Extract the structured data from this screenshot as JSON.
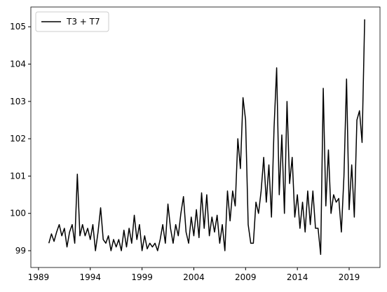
{
  "chart_data": {
    "type": "line",
    "x": [
      1990.0,
      1990.25,
      1990.5,
      1990.75,
      1991.0,
      1991.25,
      1991.5,
      1991.75,
      1992.0,
      1992.25,
      1992.5,
      1992.75,
      1993.0,
      1993.25,
      1993.5,
      1993.75,
      1994.0,
      1994.25,
      1994.5,
      1994.75,
      1995.0,
      1995.25,
      1995.5,
      1995.75,
      1996.0,
      1996.25,
      1996.5,
      1996.75,
      1997.0,
      1997.25,
      1997.5,
      1997.75,
      1998.0,
      1998.25,
      1998.5,
      1998.75,
      1999.0,
      1999.25,
      1999.5,
      1999.75,
      2000.0,
      2000.25,
      2000.5,
      2000.75,
      2001.0,
      2001.25,
      2001.5,
      2001.75,
      2002.0,
      2002.25,
      2002.5,
      2002.75,
      2003.0,
      2003.25,
      2003.5,
      2003.75,
      2004.0,
      2004.25,
      2004.5,
      2004.75,
      2005.0,
      2005.25,
      2005.5,
      2005.75,
      2006.0,
      2006.25,
      2006.5,
      2006.75,
      2007.0,
      2007.25,
      2007.5,
      2007.75,
      2008.0,
      2008.25,
      2008.5,
      2008.75,
      2009.0,
      2009.25,
      2009.5,
      2009.75,
      2010.0,
      2010.25,
      2010.5,
      2010.75,
      2011.0,
      2011.25,
      2011.5,
      2011.75,
      2012.0,
      2012.25,
      2012.5,
      2012.75,
      2013.0,
      2013.25,
      2013.5,
      2013.75,
      2014.0,
      2014.25,
      2014.5,
      2014.75,
      2015.0,
      2015.25,
      2015.5,
      2015.75,
      2016.0,
      2016.25,
      2016.5,
      2016.75,
      2017.0,
      2017.25,
      2017.5,
      2017.75,
      2018.0,
      2018.25,
      2018.5,
      2018.75,
      2019.0,
      2019.25,
      2019.5,
      2019.75,
      2020.0,
      2020.25,
      2020.5
    ],
    "series": [
      {
        "name": "T3 + T7",
        "color": "#000000",
        "values": [
          99.2,
          99.45,
          99.25,
          99.5,
          99.7,
          99.4,
          99.6,
          99.1,
          99.5,
          99.7,
          99.2,
          101.05,
          99.4,
          99.7,
          99.4,
          99.6,
          99.3,
          99.7,
          99.0,
          99.5,
          100.15,
          99.3,
          99.2,
          99.4,
          99.0,
          99.3,
          99.1,
          99.3,
          99.0,
          99.55,
          99.1,
          99.6,
          99.2,
          99.95,
          99.3,
          99.7,
          99.0,
          99.4,
          99.05,
          99.2,
          99.1,
          99.2,
          99.0,
          99.3,
          99.7,
          99.2,
          100.25,
          99.6,
          99.2,
          99.7,
          99.4,
          100.0,
          100.45,
          99.5,
          99.2,
          99.9,
          99.4,
          100.1,
          99.35,
          100.55,
          99.6,
          100.5,
          99.4,
          99.9,
          99.5,
          99.95,
          99.2,
          99.7,
          99.0,
          100.6,
          99.8,
          100.6,
          100.2,
          102.0,
          101.2,
          103.1,
          102.5,
          99.7,
          99.2,
          99.2,
          100.3,
          100.0,
          100.6,
          101.5,
          100.3,
          101.3,
          99.9,
          102.3,
          103.9,
          100.5,
          102.1,
          100.0,
          103.0,
          100.8,
          101.5,
          99.9,
          100.5,
          99.6,
          100.3,
          99.5,
          100.6,
          99.7,
          100.6,
          99.6,
          99.6,
          98.9,
          103.35,
          100.2,
          101.7,
          100.0,
          100.5,
          100.3,
          100.4,
          99.5,
          101.0,
          103.6,
          100.1,
          101.3,
          99.9,
          102.5,
          102.75,
          101.9,
          105.2
        ]
      }
    ],
    "xlim": [
      1988.26,
      2021.98
    ],
    "ylim": [
      98.55,
      105.53
    ],
    "xticks": [
      1989,
      1994,
      1999,
      2004,
      2009,
      2014,
      2019
    ],
    "yticks": [
      99,
      100,
      101,
      102,
      103,
      104,
      105
    ],
    "legend": "upper left"
  }
}
